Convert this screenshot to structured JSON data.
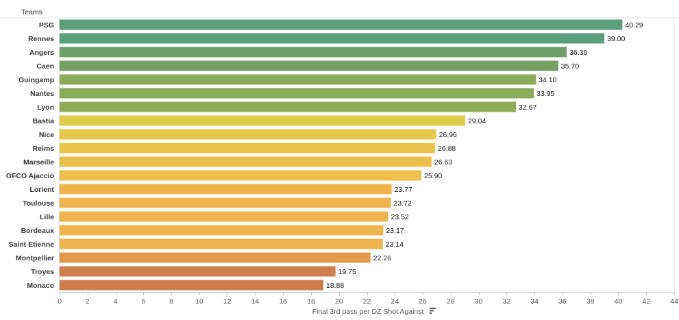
{
  "chart_data": {
    "type": "bar",
    "orientation": "horizontal",
    "row_header": "Teams",
    "xlabel": "Final 3rd pass per DZ Shot Against",
    "xlim": [
      0,
      44
    ],
    "xticks": [
      0,
      2,
      4,
      6,
      8,
      10,
      12,
      14,
      16,
      18,
      20,
      22,
      24,
      26,
      28,
      30,
      32,
      34,
      36,
      38,
      40,
      42,
      44
    ],
    "grid": false,
    "sorted": "descending",
    "sort_icon": "sort-descending-icon",
    "categories": [
      "PSG",
      "Rennes",
      "Angers",
      "Caen",
      "Guingamp",
      "Nantes",
      "Lyon",
      "Bastia",
      "Nice",
      "Reims",
      "Marseille",
      "GFCO Ajaccio",
      "Lorient",
      "Toulouse",
      "Lille",
      "Bordeaux",
      "Saint Etienne",
      "Montpellier",
      "Troyes",
      "Monaco"
    ],
    "values": [
      40.29,
      39.0,
      36.3,
      35.7,
      34.1,
      33.95,
      32.67,
      29.04,
      26.96,
      26.88,
      26.63,
      25.9,
      23.77,
      23.72,
      23.52,
      23.17,
      23.14,
      22.26,
      19.75,
      18.88
    ],
    "value_labels": [
      "40.29",
      "39.00",
      "36.30",
      "35.70",
      "34.10",
      "33.95",
      "32.67",
      "29.04",
      "26.96",
      "26.88",
      "26.63",
      "25.90",
      "23.77",
      "23.72",
      "23.52",
      "23.17",
      "23.14",
      "22.26",
      "19.75",
      "18.88"
    ],
    "colors": [
      "#5a9e7a",
      "#5a9e7a",
      "#6e9e6a",
      "#76a064",
      "#8aab5a",
      "#8aab5a",
      "#8fac58",
      "#dfcb48",
      "#e6c848",
      "#e8c44a",
      "#efbf4c",
      "#efbf4c",
      "#f0b44e",
      "#f0b44e",
      "#f0b44e",
      "#f0b44e",
      "#f0b44e",
      "#e29a4a",
      "#d07d4e",
      "#d07d4e"
    ]
  }
}
